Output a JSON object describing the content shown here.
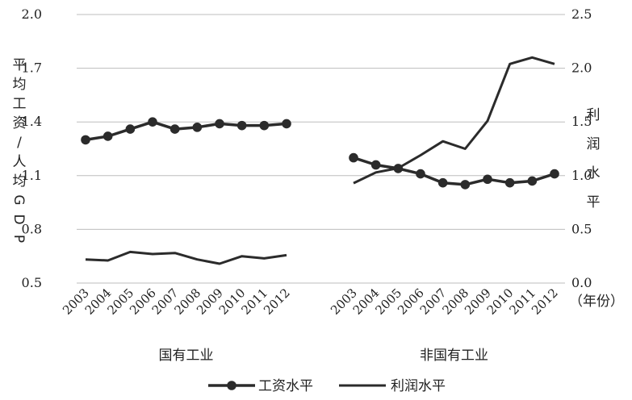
{
  "chart_data": {
    "type": "line",
    "y_left": {
      "label_chars": [
        "平",
        "均",
        "工",
        "资",
        "/",
        "人",
        "均",
        "G",
        "D",
        "P"
      ],
      "ylim": [
        0.5,
        2.0
      ],
      "ticks": [
        "0.5",
        "0.8",
        "1.1",
        "1.4",
        "1.7",
        "2.0"
      ]
    },
    "y_right": {
      "label_chars": [
        "利",
        "润",
        "水",
        "平"
      ],
      "ylim": [
        0.0,
        2.5
      ],
      "ticks": [
        "0.0",
        "0.5",
        "1.0",
        "1.5",
        "2.0",
        "2.5"
      ]
    },
    "x_unit": "（年份）",
    "grid": true,
    "legend_position": "bottom",
    "legend": [
      {
        "name": "工资水平",
        "marker": "circle"
      },
      {
        "name": "利润水平",
        "marker": "none"
      }
    ],
    "panels": [
      {
        "group_label": "国有工业",
        "categories": [
          "2003",
          "2004",
          "2005",
          "2006",
          "2007",
          "2008",
          "2009",
          "2010",
          "2011",
          "2012"
        ],
        "series": [
          {
            "name": "工资水平",
            "axis": "left",
            "values": [
              1.3,
              1.32,
              1.36,
              1.4,
              1.36,
              1.37,
              1.39,
              1.38,
              1.38,
              1.39
            ]
          },
          {
            "name": "利润水平",
            "axis": "right",
            "values": [
              0.22,
              0.21,
              0.29,
              0.27,
              0.28,
              0.22,
              0.18,
              0.25,
              0.23,
              0.26
            ]
          }
        ]
      },
      {
        "group_label": "非国有工业",
        "categories": [
          "2003",
          "2004",
          "2005",
          "2006",
          "2007",
          "2008",
          "2009",
          "2010",
          "2011",
          "2012"
        ],
        "series": [
          {
            "name": "工资水平",
            "axis": "left",
            "values": [
              1.2,
              1.16,
              1.14,
              1.11,
              1.06,
              1.05,
              1.08,
              1.06,
              1.07,
              1.11
            ]
          },
          {
            "name": "利润水平",
            "axis": "right",
            "values": [
              0.93,
              1.03,
              1.07,
              1.19,
              1.32,
              1.25,
              1.51,
              2.04,
              2.1,
              2.04
            ]
          }
        ]
      }
    ]
  }
}
